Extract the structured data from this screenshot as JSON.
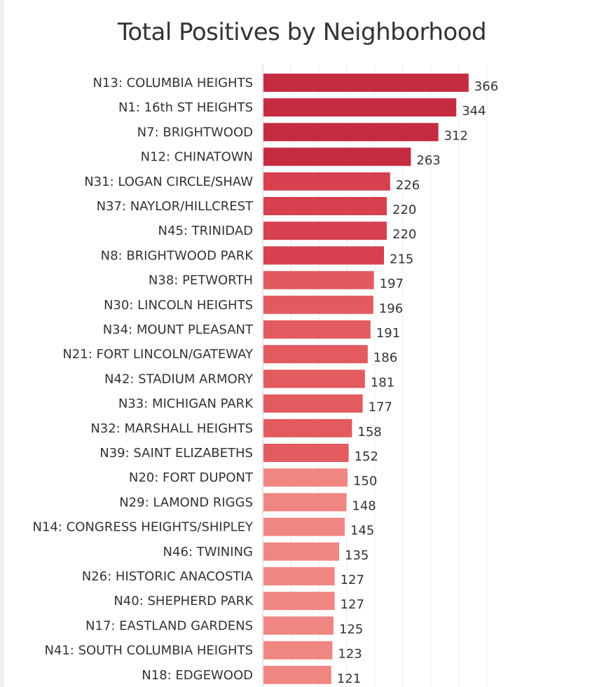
{
  "chart_data": {
    "type": "bar",
    "orientation": "horizontal",
    "title": "Total Positives by Neighborhood",
    "xlabel": "",
    "ylabel": "",
    "xlim": [
      0,
      400
    ],
    "grid": true,
    "categories": [
      "N13: COLUMBIA HEIGHTS",
      "N1: 16th ST HEIGHTS",
      "N7: BRIGHTWOOD",
      "N12: CHINATOWN",
      "N31: LOGAN CIRCLE/SHAW",
      "N37: NAYLOR/HILLCREST",
      "N45: TRINIDAD",
      "N8: BRIGHTWOOD PARK",
      "N38: PETWORTH",
      "N30: LINCOLN HEIGHTS",
      "N34: MOUNT PLEASANT",
      "N21: FORT LINCOLN/GATEWAY",
      "N42: STADIUM ARMORY",
      "N33: MICHIGAN PARK",
      "N32: MARSHALL HEIGHTS",
      "N39: SAINT ELIZABETHS",
      "N20: FORT DUPONT",
      "N29: LAMOND RIGGS",
      "N14: CONGRESS HEIGHTS/SHIPLEY",
      "N46: TWINING",
      "N26: HISTORIC ANACOSTIA",
      "N40: SHEPHERD PARK",
      "N17: EASTLAND GARDENS",
      "N41: SOUTH COLUMBIA HEIGHTS",
      "N18: EDGEWOOD"
    ],
    "values": [
      366,
      344,
      312,
      263,
      226,
      220,
      220,
      215,
      197,
      196,
      191,
      186,
      181,
      177,
      158,
      152,
      150,
      148,
      145,
      135,
      127,
      127,
      125,
      123,
      121
    ],
    "bar_colors": [
      "#c52b41",
      "#c52b41",
      "#c52b41",
      "#c52b41",
      "#d6404f",
      "#d6404f",
      "#d6404f",
      "#d6404f",
      "#e35a5f",
      "#e35a5f",
      "#e35a5f",
      "#e35a5f",
      "#e35a5f",
      "#e35a5f",
      "#e35a5f",
      "#e35a5f",
      "#f08682",
      "#f08682",
      "#f08682",
      "#f08682",
      "#f08682",
      "#f08682",
      "#f08682",
      "#f08682",
      "#f08682"
    ]
  }
}
